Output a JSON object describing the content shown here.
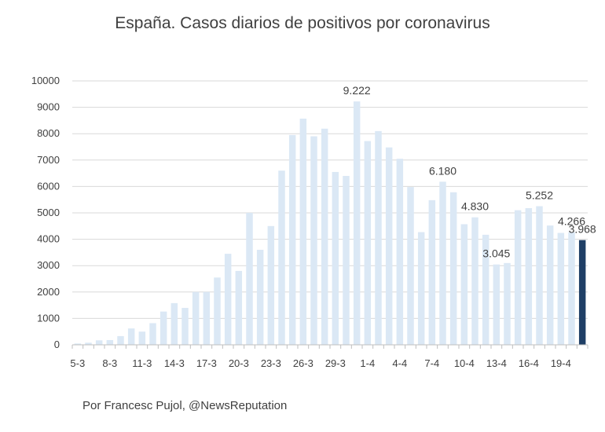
{
  "title": "España. Casos diarios de positivos por coronavirus",
  "source": "Por Francesc Pujol, @NewsReputation",
  "colors": {
    "bar": "#dbe8f5",
    "highlight": "#1f3f66",
    "grid": "#d9d9d9",
    "axis": "#bfbfbf",
    "text": "#404040"
  },
  "chart_data": {
    "type": "bar",
    "title": "España. Casos diarios de positivos por coronavirus",
    "xlabel": "",
    "ylabel": "",
    "ylim": [
      0,
      10000
    ],
    "yticks": [
      0,
      1000,
      2000,
      3000,
      4000,
      5000,
      6000,
      7000,
      8000,
      9000,
      10000
    ],
    "grid": true,
    "categories": [
      "5-3",
      "6-3",
      "7-3",
      "8-3",
      "9-3",
      "10-3",
      "11-3",
      "12-3",
      "13-3",
      "14-3",
      "15-3",
      "16-3",
      "17-3",
      "18-3",
      "19-3",
      "20-3",
      "21-3",
      "22-3",
      "23-3",
      "24-3",
      "25-3",
      "26-3",
      "27-3",
      "28-3",
      "29-3",
      "30-3",
      "31-3",
      "1-4",
      "2-4",
      "3-4",
      "4-4",
      "5-4",
      "6-4",
      "7-4",
      "8-4",
      "9-4",
      "10-4",
      "11-4",
      "12-4",
      "13-4",
      "14-4",
      "15-4",
      "16-4",
      "17-4",
      "18-4",
      "19-4",
      "20-4",
      "21-4"
    ],
    "x_tick_labels": [
      "5-3",
      "8-3",
      "11-3",
      "14-3",
      "17-3",
      "20-3",
      "23-3",
      "26-3",
      "29-3",
      "1-4",
      "4-4",
      "7-4",
      "10-4",
      "13-4",
      "16-4",
      "19-4"
    ],
    "values": [
      50,
      80,
      170,
      180,
      330,
      620,
      500,
      820,
      1260,
      1580,
      1400,
      2000,
      2000,
      2550,
      3450,
      2800,
      5000,
      3600,
      4500,
      6600,
      7950,
      8570,
      7900,
      8190,
      6550,
      6400,
      9222,
      7720,
      8100,
      7480,
      7050,
      5980,
      4270,
      5480,
      6180,
      5780,
      4570,
      4830,
      4170,
      3045,
      3100,
      5100,
      5180,
      5252,
      4520,
      4240,
      4266,
      3968
    ],
    "highlight_index": 47,
    "data_labels": [
      {
        "index": 26,
        "text": "9.222"
      },
      {
        "index": 34,
        "text": "6.180"
      },
      {
        "index": 37,
        "text": "4.830"
      },
      {
        "index": 39,
        "text": "3.045"
      },
      {
        "index": 43,
        "text": "5.252"
      },
      {
        "index": 46,
        "text": "4.266"
      },
      {
        "index": 47,
        "text": "3.968"
      }
    ]
  }
}
